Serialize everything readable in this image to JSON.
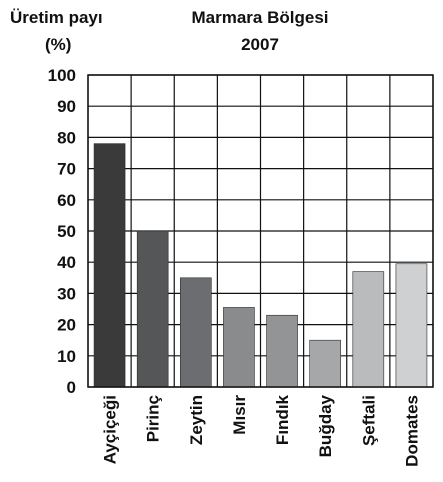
{
  "chart_data": {
    "type": "bar",
    "title": "Marmara Bölgesi",
    "subtitle": "2007",
    "ylabel_line1": "Üretim payı",
    "ylabel_line2": "(%)",
    "xlabel": "",
    "ylim": [
      0,
      100
    ],
    "yticks": [
      "0",
      "10",
      "20",
      "30",
      "40",
      "50",
      "60",
      "70",
      "80",
      "90",
      "100"
    ],
    "grid": true,
    "categories": [
      "Ayçiçeği",
      "Pirinç",
      "Zeytin",
      "Mısır",
      "Fındık",
      "Buğday",
      "Şeftali",
      "Domates"
    ],
    "values": [
      78,
      50,
      35,
      25.5,
      23,
      15,
      37,
      39.5
    ],
    "colors": [
      "#3a3a3a",
      "#555658",
      "#6c6d70",
      "#8a8b8d",
      "#939496",
      "#a6a7a9",
      "#babbbd",
      "#cfd0d1"
    ]
  }
}
